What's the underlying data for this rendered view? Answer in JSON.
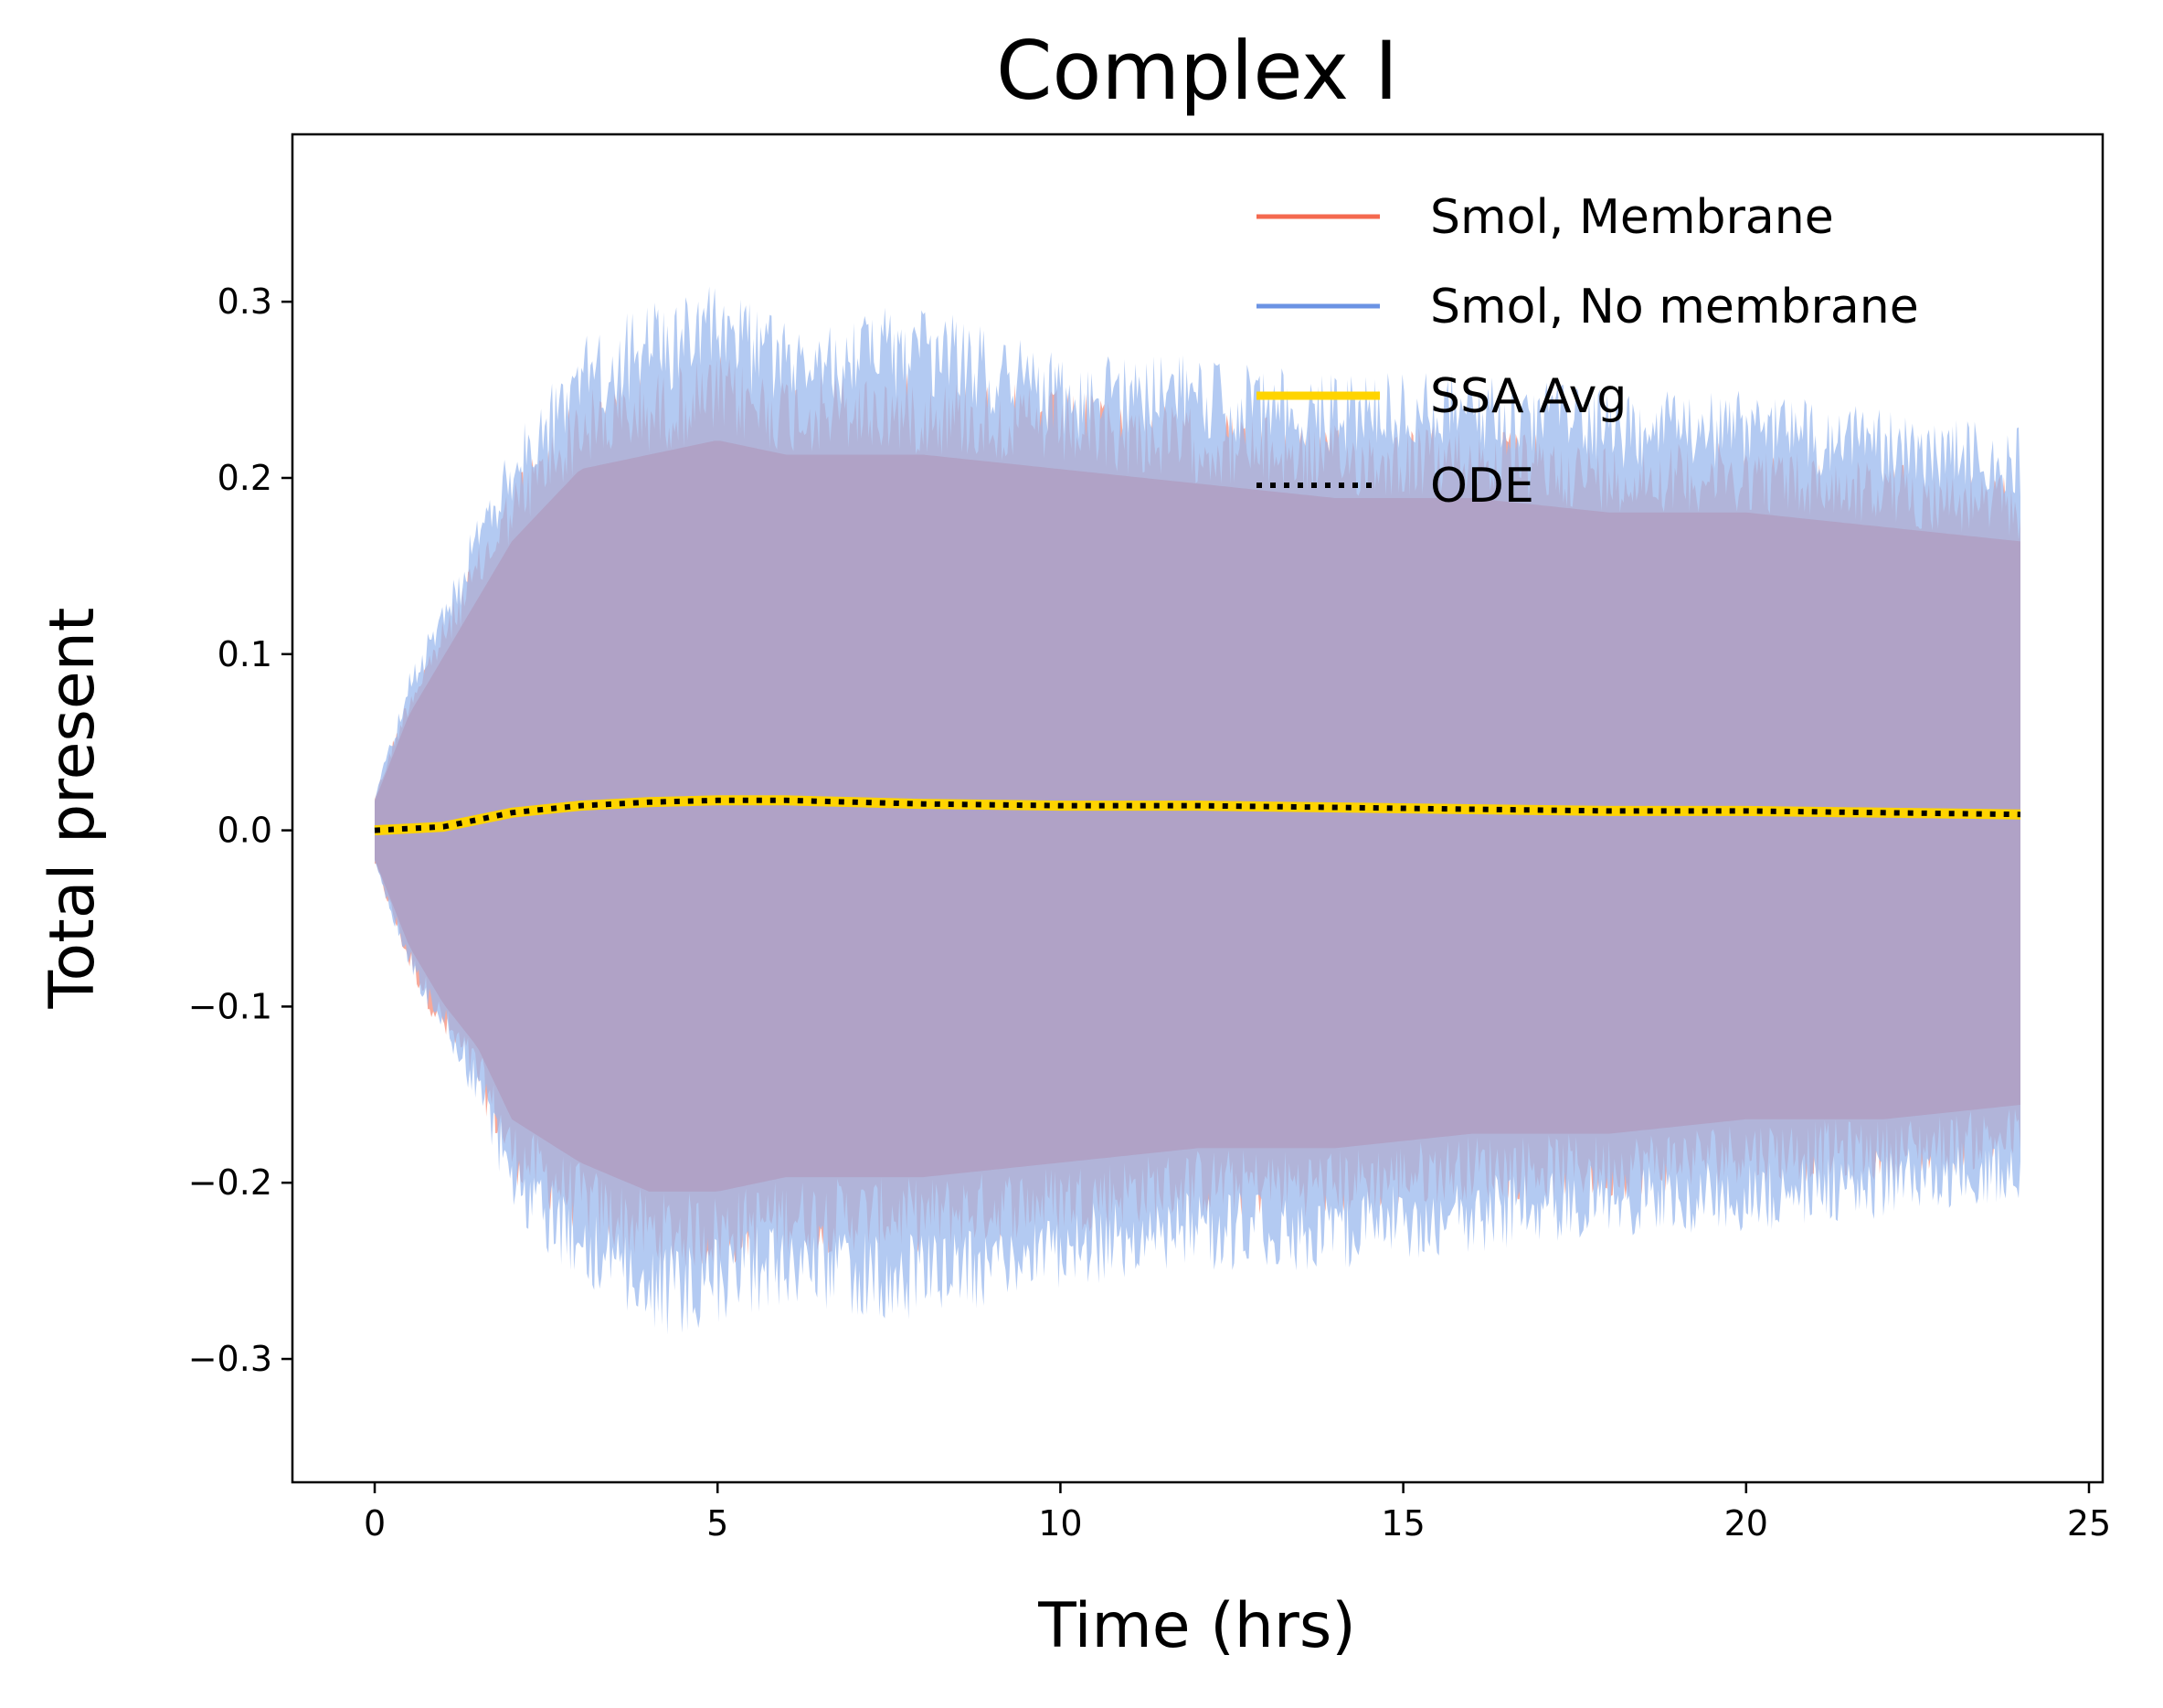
{
  "chart_data": {
    "type": "area",
    "title": "Complex I",
    "xlabel": "Time (hrs)",
    "ylabel": "Total present",
    "xlim": [
      -1.2,
      25.2
    ],
    "ylim": [
      -0.37,
      0.395
    ],
    "xticks": [
      0,
      5,
      10,
      15,
      20,
      25
    ],
    "xtick_labels": [
      "0",
      "5",
      "10",
      "15",
      "20",
      "25"
    ],
    "yticks": [
      -0.3,
      -0.2,
      -0.1,
      0.0,
      0.1,
      0.2,
      0.3
    ],
    "ytick_labels": [
      "−0.3",
      "−0.2",
      "−0.1",
      "0.0",
      "0.1",
      "0.2",
      "0.3"
    ],
    "grid": false,
    "legend_position": "top-right",
    "legend": [
      {
        "label": "Smol, Membrane",
        "color": "#f4694f",
        "style": "solid"
      },
      {
        "label": "Smol, No membrane",
        "color": "#6b93e4",
        "style": "solid"
      },
      {
        "label": "SSA Avg",
        "color": "#ffd400",
        "style": "solid-thick"
      },
      {
        "label": "ODE",
        "color": "#000000",
        "style": "dotted"
      }
    ],
    "bands": [
      {
        "name": "Smol, Membrane",
        "color": "#f58c78",
        "x": [
          0,
          0.5,
          1,
          1.5,
          2,
          3,
          4,
          5,
          6,
          8,
          10,
          12,
          14,
          16,
          18,
          20,
          22,
          24
        ],
        "upper": [
          0.02,
          0.08,
          0.12,
          0.16,
          0.2,
          0.25,
          0.26,
          0.27,
          0.26,
          0.26,
          0.25,
          0.24,
          0.23,
          0.23,
          0.22,
          0.22,
          0.21,
          0.2
        ],
        "lower": [
          -0.02,
          -0.08,
          -0.12,
          -0.15,
          -0.2,
          -0.23,
          -0.25,
          -0.25,
          -0.24,
          -0.24,
          -0.23,
          -0.22,
          -0.22,
          -0.21,
          -0.21,
          -0.2,
          -0.2,
          -0.19
        ]
      },
      {
        "name": "Smol, No membrane",
        "color": "#9ab8ee",
        "x": [
          0,
          0.5,
          1,
          1.5,
          2,
          3,
          4,
          5,
          6,
          8,
          10,
          12,
          14,
          16,
          18,
          20,
          22,
          24
        ],
        "upper": [
          0.02,
          0.09,
          0.13,
          0.18,
          0.22,
          0.28,
          0.3,
          0.31,
          0.29,
          0.3,
          0.27,
          0.27,
          0.26,
          0.26,
          0.25,
          0.25,
          0.24,
          0.23
        ],
        "lower": [
          -0.02,
          -0.08,
          -0.12,
          -0.16,
          -0.22,
          -0.26,
          -0.29,
          -0.28,
          -0.27,
          -0.28,
          -0.26,
          -0.25,
          -0.25,
          -0.24,
          -0.23,
          -0.23,
          -0.22,
          -0.21
        ]
      }
    ],
    "series": [
      {
        "name": "SSA Avg",
        "color": "#ffd400",
        "x": [
          0,
          1,
          2,
          3,
          4,
          5,
          6,
          7,
          8,
          10,
          12,
          14,
          16,
          18,
          20,
          22,
          24
        ],
        "values": [
          0.0,
          0.002,
          0.01,
          0.014,
          0.016,
          0.017,
          0.017,
          0.016,
          0.015,
          0.014,
          0.014,
          0.013,
          0.012,
          0.011,
          0.011,
          0.01,
          0.009
        ]
      },
      {
        "name": "ODE",
        "color": "#000000",
        "x": [
          0,
          1,
          2,
          3,
          4,
          5,
          6,
          7,
          8,
          10,
          12,
          14,
          16,
          18,
          20,
          22,
          24
        ],
        "values": [
          0.0,
          0.002,
          0.01,
          0.014,
          0.016,
          0.017,
          0.017,
          0.016,
          0.015,
          0.014,
          0.014,
          0.013,
          0.012,
          0.011,
          0.011,
          0.01,
          0.009
        ]
      }
    ]
  }
}
